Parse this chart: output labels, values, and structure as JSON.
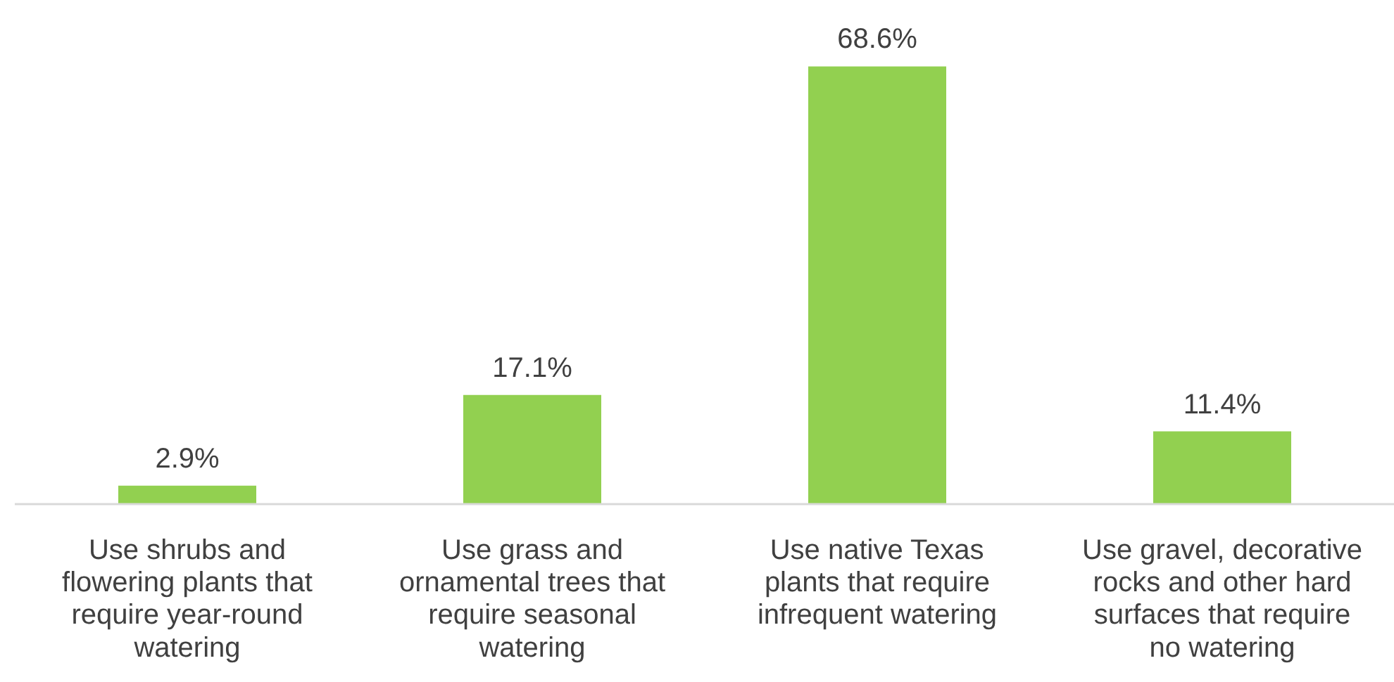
{
  "chart_data": {
    "type": "bar",
    "categories": [
      "Use shrubs and flowering plants that require year-round watering",
      "Use grass and ornamental trees that require seasonal watering",
      "Use native Texas plants that require infrequent watering",
      "Use gravel, decorative rocks and other hard surfaces that require no watering"
    ],
    "values": [
      2.9,
      17.1,
      68.6,
      11.4
    ],
    "value_labels": [
      "2.9%",
      "17.1%",
      "68.6%",
      "11.4%"
    ],
    "color": "#92d050",
    "grid": false
  }
}
